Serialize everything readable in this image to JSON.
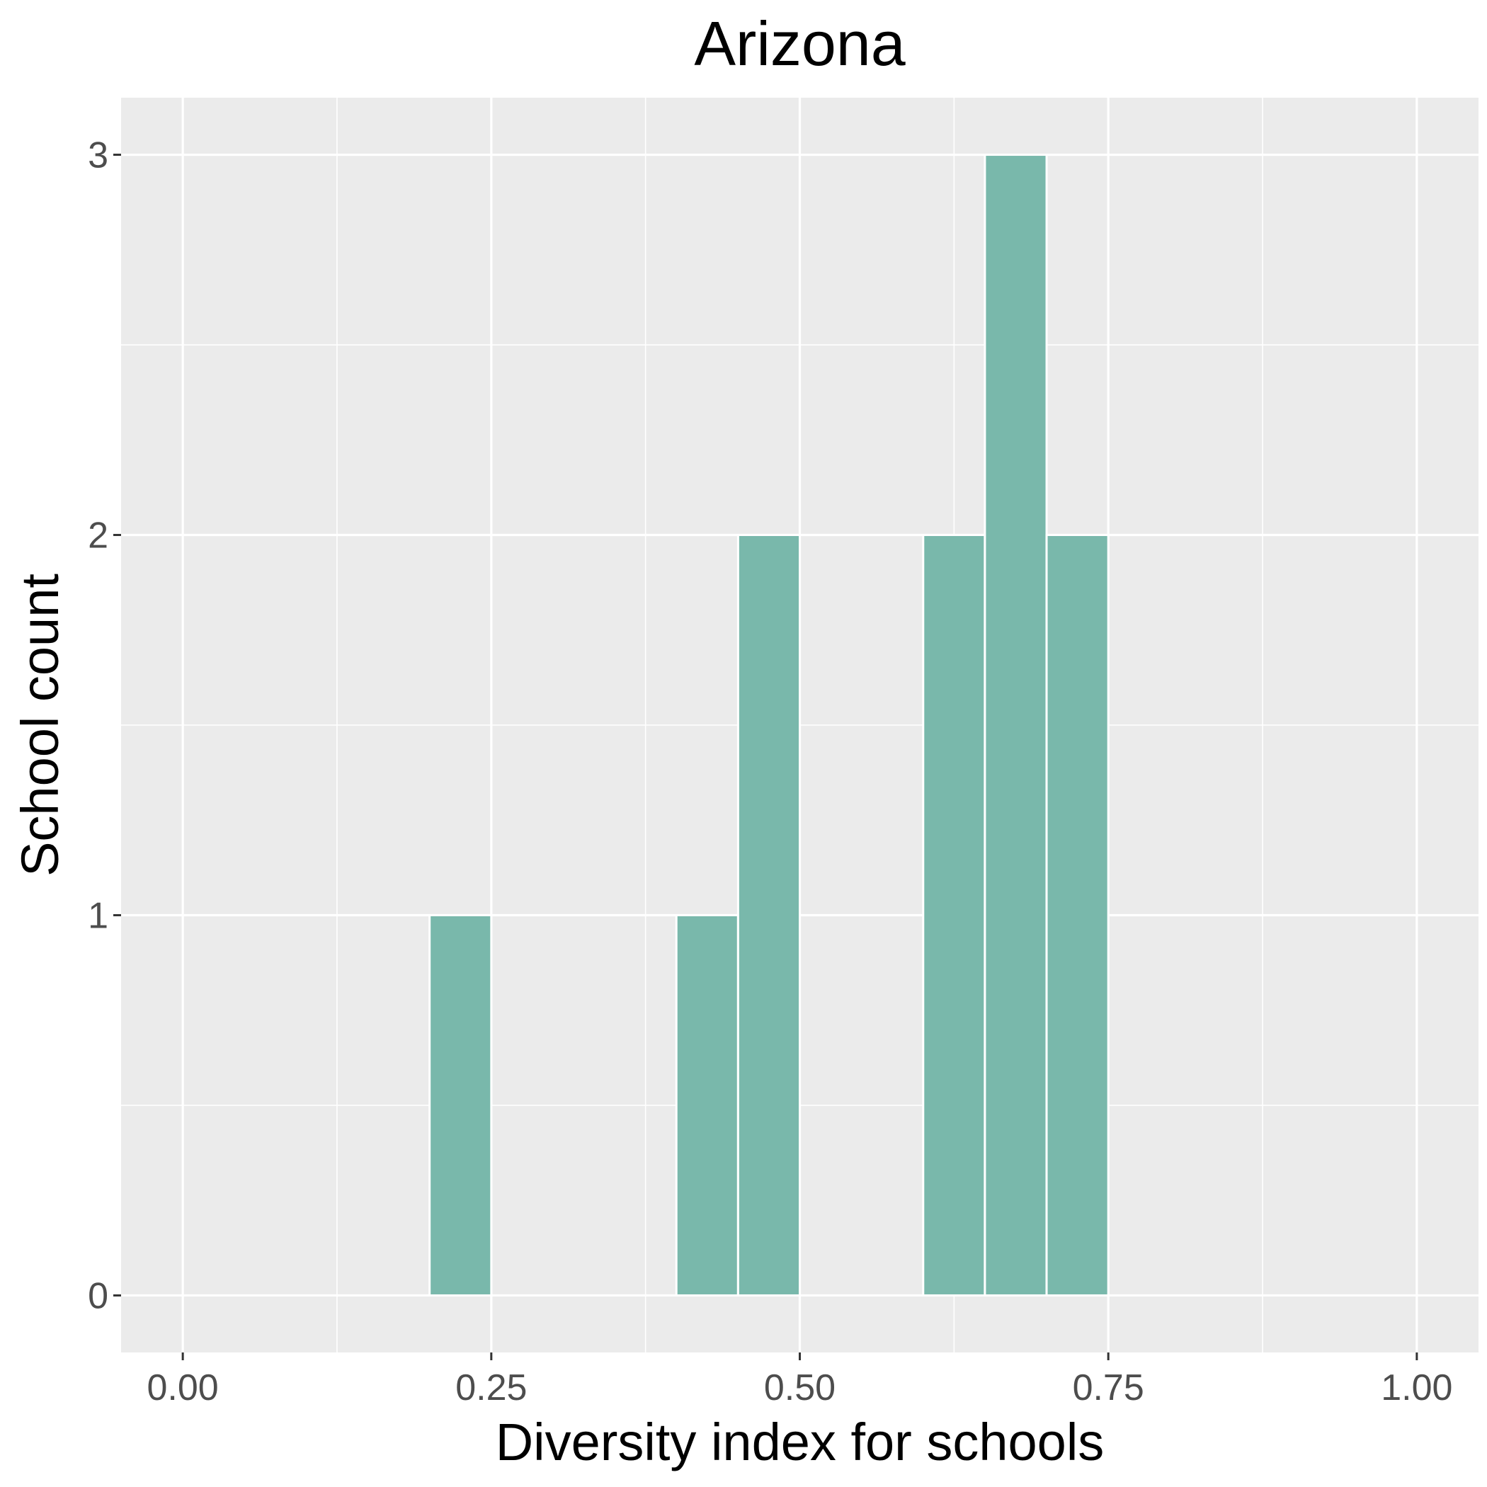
{
  "chart_data": {
    "type": "bar",
    "title": "Arizona",
    "xlabel": "Diversity index for schools",
    "ylabel": "School count",
    "bin_width": 0.05,
    "bins": [
      {
        "x_start": 0.0,
        "x_end": 0.05,
        "count": 0
      },
      {
        "x_start": 0.05,
        "x_end": 0.1,
        "count": 0
      },
      {
        "x_start": 0.1,
        "x_end": 0.15,
        "count": 0
      },
      {
        "x_start": 0.15,
        "x_end": 0.2,
        "count": 0
      },
      {
        "x_start": 0.2,
        "x_end": 0.25,
        "count": 1
      },
      {
        "x_start": 0.25,
        "x_end": 0.3,
        "count": 0
      },
      {
        "x_start": 0.3,
        "x_end": 0.35,
        "count": 0
      },
      {
        "x_start": 0.35,
        "x_end": 0.4,
        "count": 0
      },
      {
        "x_start": 0.4,
        "x_end": 0.45,
        "count": 1
      },
      {
        "x_start": 0.45,
        "x_end": 0.5,
        "count": 2
      },
      {
        "x_start": 0.5,
        "x_end": 0.55,
        "count": 0
      },
      {
        "x_start": 0.55,
        "x_end": 0.6,
        "count": 0
      },
      {
        "x_start": 0.6,
        "x_end": 0.65,
        "count": 2
      },
      {
        "x_start": 0.65,
        "x_end": 0.7,
        "count": 3
      },
      {
        "x_start": 0.7,
        "x_end": 0.75,
        "count": 2
      },
      {
        "x_start": 0.75,
        "x_end": 0.8,
        "count": 0
      },
      {
        "x_start": 0.8,
        "x_end": 0.85,
        "count": 0
      },
      {
        "x_start": 0.85,
        "x_end": 0.9,
        "count": 0
      },
      {
        "x_start": 0.9,
        "x_end": 0.95,
        "count": 0
      },
      {
        "x_start": 0.95,
        "x_end": 1.0,
        "count": 0
      }
    ],
    "xlim": [
      -0.05,
      1.05
    ],
    "ylim": [
      -0.15,
      3.15
    ],
    "x_ticks": [
      0.0,
      0.25,
      0.5,
      0.75,
      1.0
    ],
    "x_tick_labels": [
      "0.00",
      "0.25",
      "0.50",
      "0.75",
      "1.00"
    ],
    "x_minor_ticks": [
      0.125,
      0.375,
      0.625,
      0.875
    ],
    "y_ticks": [
      0,
      1,
      2,
      3
    ],
    "y_tick_labels": [
      "0",
      "1",
      "2",
      "3"
    ],
    "y_minor_ticks": [
      0.5,
      1.5,
      2.5
    ],
    "grid": true,
    "legend": "none",
    "colors": {
      "bar_fill": "#79b8ab",
      "panel_background": "#ebebeb",
      "grid_line": "#ffffff",
      "tick_text": "#4d4d4d",
      "title_text": "#000000"
    }
  }
}
